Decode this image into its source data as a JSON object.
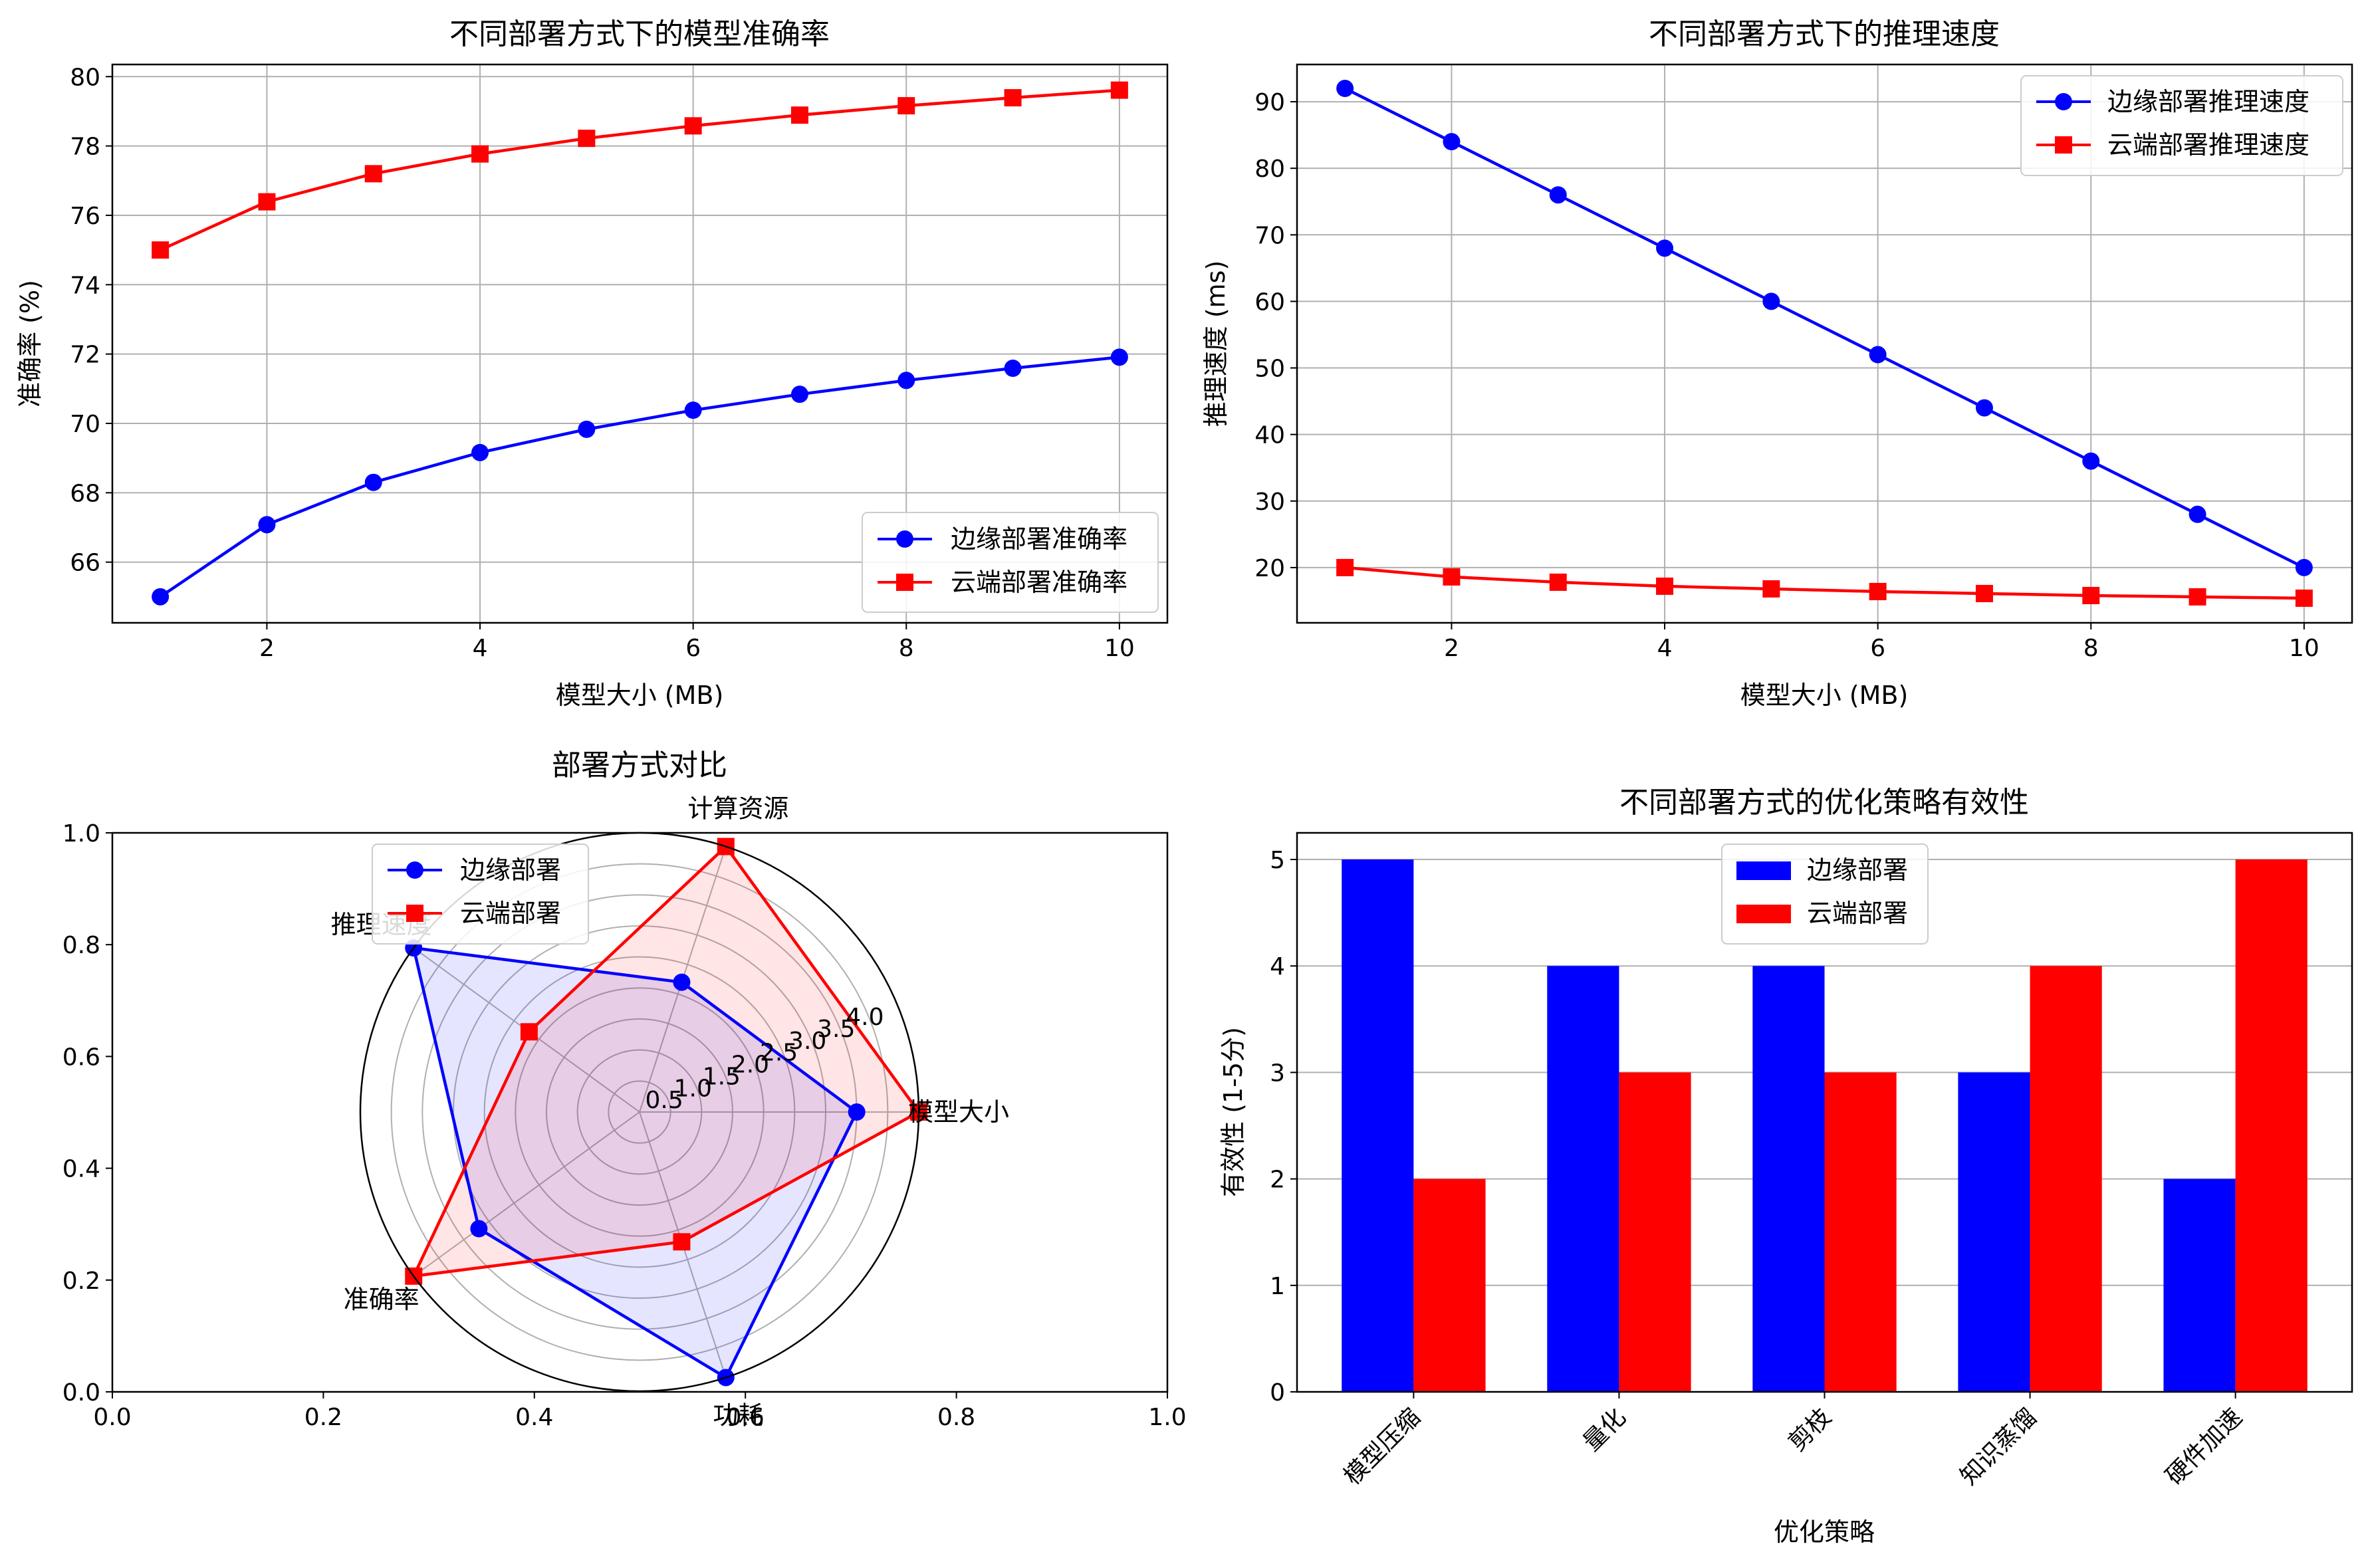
{
  "colors": {
    "edge": "#0000ff",
    "cloud": "#ff0000",
    "grid": "#b0b0b0",
    "axis": "#000000"
  },
  "chart_data": [
    {
      "type": "line",
      "title": "不同部署方式下的模型准确率",
      "xlabel": "模型大小 (MB)",
      "ylabel": "准确率 (%)",
      "x": [
        1,
        2,
        3,
        4,
        5,
        6,
        7,
        8,
        9,
        10
      ],
      "xlim": [
        0.55,
        10.45
      ],
      "ylim": [
        64.25,
        80.35
      ],
      "xticks": [
        "2",
        "4",
        "6",
        "8",
        "10"
      ],
      "xtick_values": [
        2,
        4,
        6,
        8,
        10
      ],
      "yticks": [
        "66",
        "68",
        "70",
        "72",
        "74",
        "76",
        "78",
        "80"
      ],
      "ytick_values": [
        66,
        68,
        70,
        72,
        74,
        76,
        78,
        80
      ],
      "grid": true,
      "legend_position": "lower-right",
      "series": [
        {
          "name": "边缘部署准确率",
          "color": "#0000ff",
          "marker": "circle",
          "values": [
            65.0,
            67.08,
            68.3,
            69.16,
            69.83,
            70.38,
            70.84,
            71.24,
            71.59,
            71.91
          ]
        },
        {
          "name": "云端部署准确率",
          "color": "#ff0000",
          "marker": "square",
          "values": [
            75.0,
            76.39,
            77.2,
            77.77,
            78.22,
            78.58,
            78.89,
            79.16,
            79.39,
            79.61
          ]
        }
      ]
    },
    {
      "type": "line",
      "title": "不同部署方式下的推理速度",
      "xlabel": "模型大小 (MB)",
      "ylabel": "推理速度 (ms)",
      "x": [
        1,
        2,
        3,
        4,
        5,
        6,
        7,
        8,
        9,
        10
      ],
      "xlim": [
        0.55,
        10.45
      ],
      "ylim": [
        11.7,
        95.6
      ],
      "xticks": [
        "2",
        "4",
        "6",
        "8",
        "10"
      ],
      "xtick_values": [
        2,
        4,
        6,
        8,
        10
      ],
      "yticks": [
        "20",
        "30",
        "40",
        "50",
        "60",
        "70",
        "80",
        "90"
      ],
      "ytick_values": [
        20,
        30,
        40,
        50,
        60,
        70,
        80,
        90
      ],
      "grid": true,
      "legend_position": "top-right",
      "series": [
        {
          "name": "边缘部署推理速度",
          "color": "#0000ff",
          "marker": "circle",
          "values": [
            92,
            84,
            76,
            68,
            60,
            52,
            44,
            36,
            28,
            20
          ]
        },
        {
          "name": "云端部署推理速度",
          "color": "#ff0000",
          "marker": "square",
          "values": [
            20.0,
            18.6,
            17.8,
            17.2,
            16.8,
            16.4,
            16.1,
            15.8,
            15.6,
            15.4
          ]
        }
      ]
    },
    {
      "type": "radar",
      "title": "部署方式对比",
      "categories": [
        "模型大小",
        "计算资源",
        "推理速度",
        "准确率",
        "功耗"
      ],
      "rlim": [
        0,
        4.5
      ],
      "rticks": [
        "0.5",
        "1.0",
        "1.5",
        "2.0",
        "2.5",
        "3.0",
        "3.5",
        "4.0"
      ],
      "rtick_values": [
        0.5,
        1.0,
        1.5,
        2.0,
        2.5,
        3.0,
        3.5,
        4.0
      ],
      "background_axis": {
        "xlim": [
          0,
          1
        ],
        "ylim": [
          0,
          1
        ],
        "xticks": [
          "0.0",
          "0.2",
          "0.4",
          "0.6",
          "0.8",
          "1.0"
        ],
        "xtick_values": [
          0,
          0.2,
          0.4,
          0.6,
          0.8,
          1.0
        ],
        "yticks": [
          "0.0",
          "0.2",
          "0.4",
          "0.6",
          "0.8",
          "1.0"
        ],
        "ytick_values": [
          0,
          0.2,
          0.4,
          0.6,
          0.8,
          1.0
        ]
      },
      "legend_position": "top-left",
      "series": [
        {
          "name": "边缘部署",
          "color": "#0000ff",
          "marker": "circle",
          "values": [
            3.5,
            2.2,
            4.5,
            3.2,
            4.5
          ]
        },
        {
          "name": "云端部署",
          "color": "#ff0000",
          "marker": "square",
          "values": [
            4.5,
            4.5,
            2.2,
            4.5,
            2.2
          ]
        }
      ]
    },
    {
      "type": "bar",
      "title": "不同部署方式的优化策略有效性",
      "xlabel": "优化策略",
      "ylabel": "有效性 (1-5分)",
      "categories": [
        "模型压缩",
        "量化",
        "剪枝",
        "知识蒸馏",
        "硬件加速"
      ],
      "ylim": [
        0,
        5.25
      ],
      "yticks": [
        "0",
        "1",
        "2",
        "3",
        "4",
        "5"
      ],
      "ytick_values": [
        0,
        1,
        2,
        3,
        4,
        5
      ],
      "grid": "y",
      "legend_position": "top-center",
      "series": [
        {
          "name": "边缘部署",
          "color": "#0000ff",
          "values": [
            5,
            4,
            4,
            3,
            2
          ]
        },
        {
          "name": "云端部署",
          "color": "#ff0000",
          "values": [
            2,
            3,
            3,
            4,
            5
          ]
        }
      ]
    }
  ]
}
